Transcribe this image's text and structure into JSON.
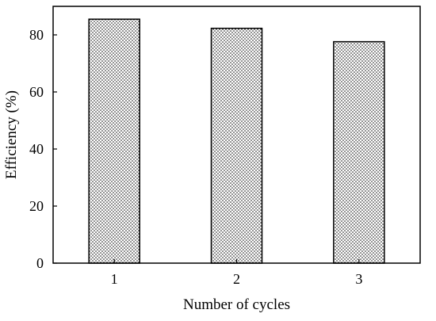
{
  "chart_data": {
    "type": "bar",
    "categories": [
      "1",
      "2",
      "3"
    ],
    "values": [
      85.5,
      82.3,
      77.6
    ],
    "xlabel": "Number of cycles",
    "ylabel": "Efficiency (%)",
    "ylim": [
      0,
      90
    ],
    "yticks": [
      0,
      20,
      40,
      60,
      80
    ],
    "grid": false,
    "bar_fill": "dotted",
    "colors": {
      "bar_edge": "#000000",
      "dot": "#000000",
      "background": "#ffffff"
    }
  }
}
